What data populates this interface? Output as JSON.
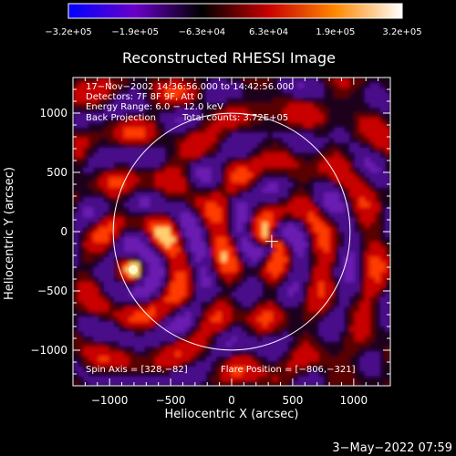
{
  "chart_data": {
    "type": "heatmap",
    "title": "Reconstructed RHESSI Image",
    "xlabel": "Heliocentric X (arcsec)",
    "ylabel": "Heliocentric Y (arcsec)",
    "xlim": [
      -1300,
      1300
    ],
    "ylim": [
      -1300,
      1300
    ],
    "xticks": [
      -1000,
      -500,
      0,
      500,
      1000
    ],
    "yticks": [
      -1000,
      -500,
      0,
      500,
      1000
    ],
    "xtick_labels": [
      "−1000",
      "−500",
      "0",
      "500",
      "1000"
    ],
    "ytick_labels": [
      "−1000",
      "−500",
      "0",
      "500",
      "1000"
    ],
    "colorbar": {
      "min": -320000,
      "max": 320000,
      "tick_labels": [
        "−3.2e+05",
        "−1.9e+05",
        "−6.3e+04",
        "6.3e+04",
        "1.9e+05",
        "3.2e+05"
      ],
      "colors": [
        "#0000ff",
        "#6a00c8",
        "#000000",
        "#c80000",
        "#ff8800",
        "#ffffff"
      ]
    },
    "annotations": {
      "time_range": "17−Nov−2002 14:36:56.000 to 14:42:56.000",
      "detectors": "Detectors: 7F 8F 9F, Att 0",
      "energy": "Energy Range: 6.0 − 12.0 keV",
      "method": "Back Projection",
      "counts": "Total counts: 3.72E+05",
      "spin_axis": "Spin Axis = [328,−82]",
      "flare_position": "Flare Position = [−806,−321]"
    },
    "spin_axis": [
      328,
      -82
    ],
    "flare_position": [
      -806,
      -321
    ],
    "solar_disk_radius": 970,
    "timestamp": "3−May−2022 07:59"
  }
}
